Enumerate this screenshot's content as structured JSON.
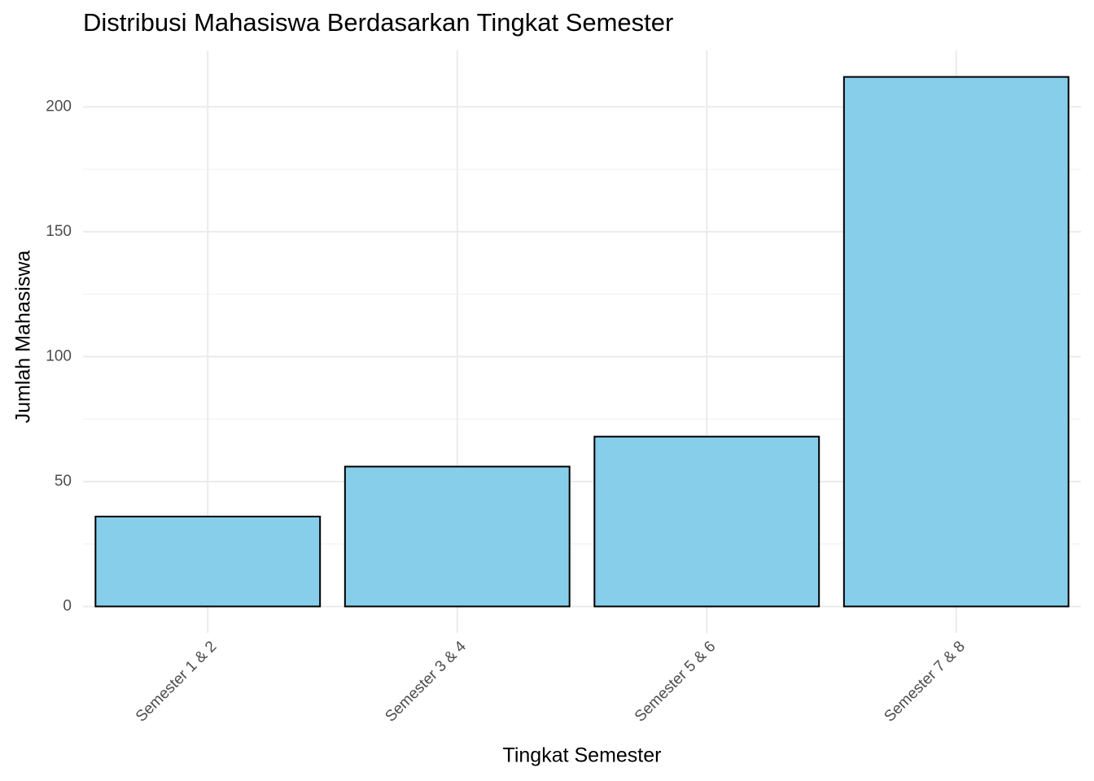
{
  "chart_data": {
    "type": "bar",
    "title": "Distribusi Mahasiswa Berdasarkan Tingkat Semester",
    "x_label": "Tingkat Semester",
    "y_label": "Jumlah Mahasiswa",
    "categories": [
      "Semester 1 & 2",
      "Semester 3 & 4",
      "Semester 5 & 6",
      "Semester 7 & 8"
    ],
    "values": [
      36,
      56,
      68,
      212
    ],
    "color": "#87ceeb",
    "edge_color": "#000000",
    "ylim": [
      -10.6,
      222.6
    ],
    "yticks": [
      0,
      50,
      100,
      150,
      200
    ],
    "minor_yticks": [
      25,
      75,
      125,
      175
    ],
    "grid": true
  }
}
